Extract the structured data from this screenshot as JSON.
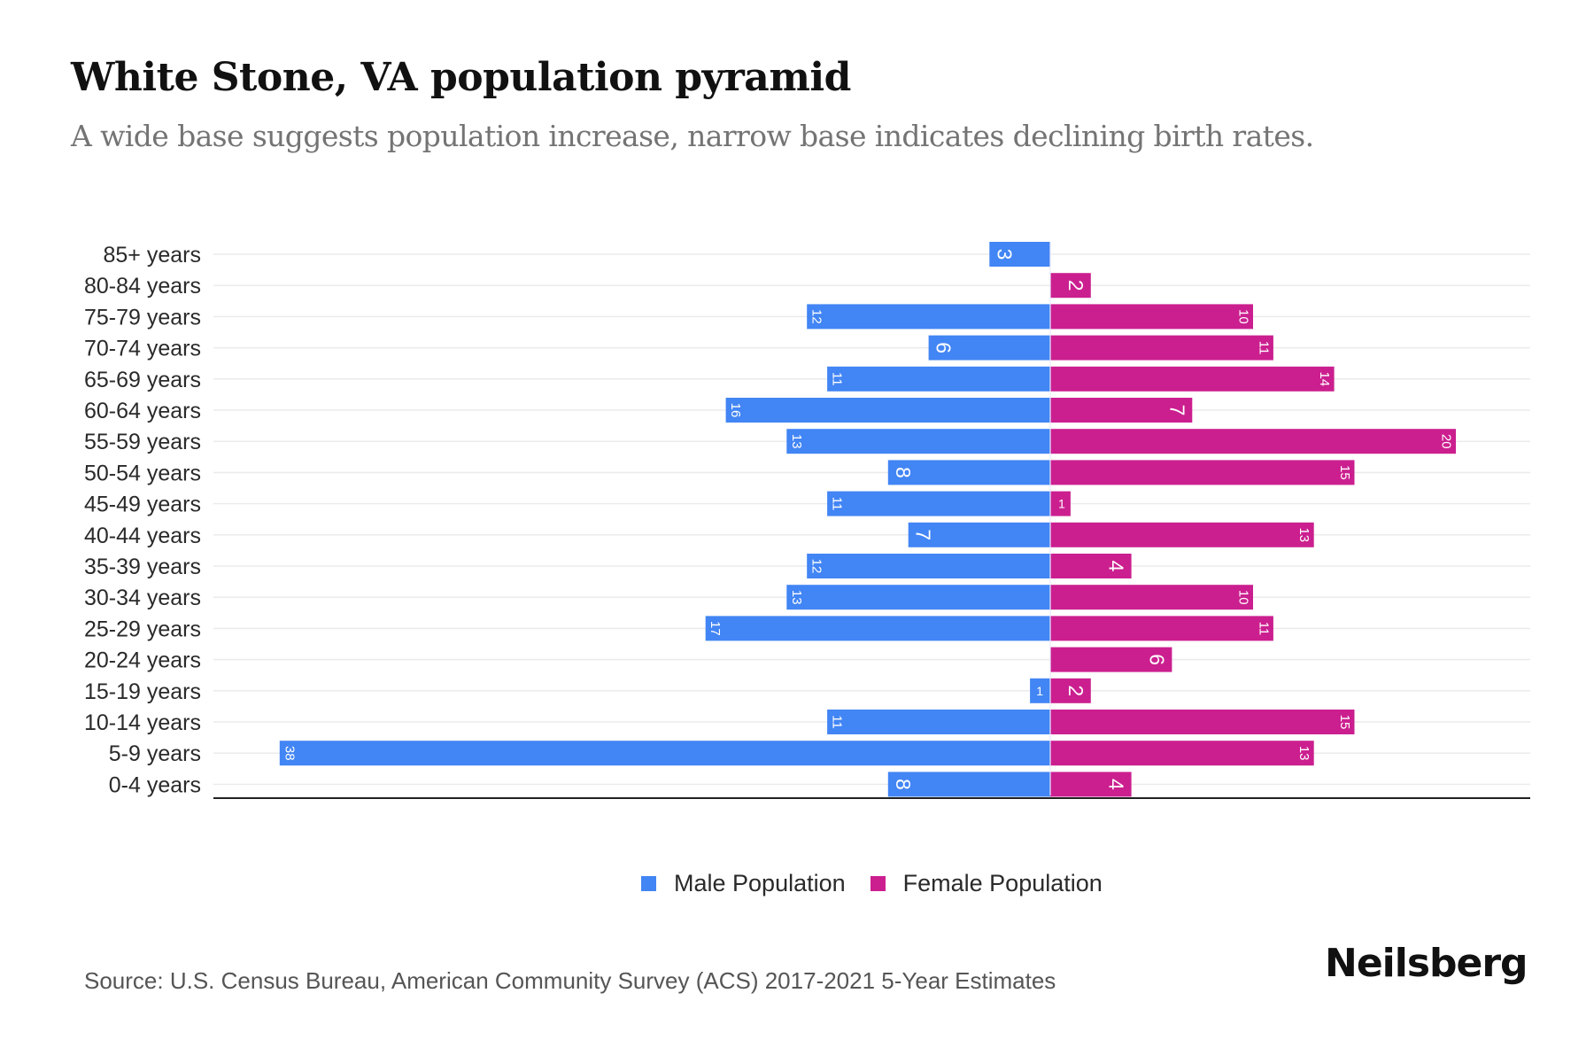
{
  "header": {
    "title": "White Stone, VA population pyramid",
    "subtitle": "A wide base suggests population increase, narrow base indicates declining birth rates."
  },
  "footer": {
    "source": "Source: U.S. Census Bureau, American Community Survey (ACS) 2017-2021 5-Year Estimates",
    "logo": "Neilsberg"
  },
  "colors": {
    "male": "#4285F4",
    "female": "#CB1F8F",
    "gridline": "#EBEBEB",
    "axis": "#222222",
    "label": "#2a2a2a"
  },
  "chart_data": {
    "type": "bar",
    "orientation": "horizontal",
    "subtype": "population-pyramid",
    "title": "White Stone, VA population pyramid",
    "subtitle": "A wide base suggests population increase, narrow base indicates declining birth rates.",
    "xlabel": "",
    "ylabel": "",
    "categories": [
      "85+ years",
      "80-84 years",
      "75-79 years",
      "70-74 years",
      "65-69 years",
      "60-64 years",
      "55-59 years",
      "50-54 years",
      "45-49 years",
      "40-44 years",
      "35-39 years",
      "30-34 years",
      "25-29 years",
      "20-24 years",
      "15-19 years",
      "10-14 years",
      "5-9 years",
      "0-4 years"
    ],
    "series": [
      {
        "name": "Male Population",
        "color": "#4285F4",
        "direction": "left",
        "values": [
          3,
          0,
          12,
          6,
          11,
          16,
          13,
          8,
          11,
          7,
          12,
          13,
          17,
          0,
          1,
          11,
          38,
          8
        ]
      },
      {
        "name": "Female Population",
        "color": "#CB1F8F",
        "direction": "right",
        "values": [
          0,
          2,
          10,
          11,
          14,
          7,
          20,
          15,
          1,
          13,
          4,
          10,
          11,
          6,
          2,
          15,
          13,
          4
        ]
      }
    ],
    "xlim": [
      -36,
      23
    ],
    "grid": true,
    "data_labels": true,
    "data_label_rotation": "vertical",
    "legend": {
      "position": "bottom-center",
      "entries": [
        "Male Population",
        "Female Population"
      ]
    }
  }
}
